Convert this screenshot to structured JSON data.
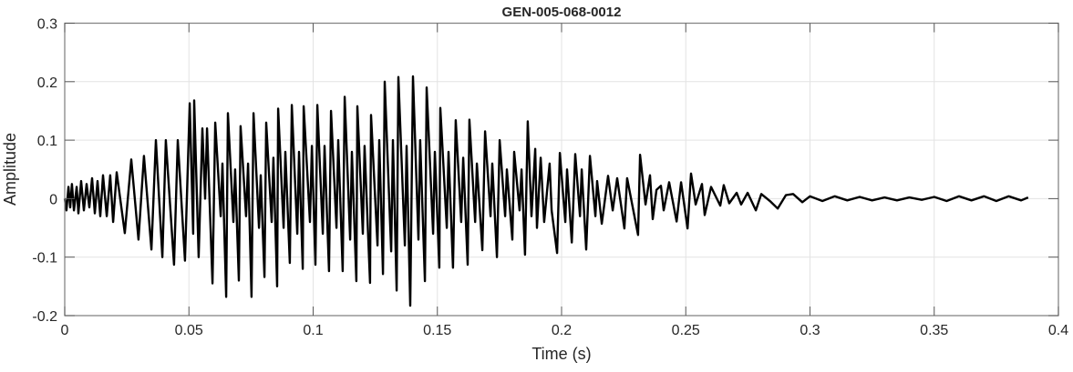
{
  "chart_data": {
    "type": "line",
    "title": "GEN-005-068-0012",
    "xlabel": "Time (s)",
    "ylabel": "Amplitude",
    "xlim": [
      0,
      0.4
    ],
    "ylim": [
      -0.2,
      0.3
    ],
    "xticks": [
      0,
      0.05,
      0.1,
      0.15,
      0.2,
      0.25,
      0.3,
      0.35,
      0.4
    ],
    "xtick_labels": [
      "0",
      "0.05",
      "0.1",
      "0.15",
      "0.2",
      "0.25",
      "0.3",
      "0.35",
      "0.4"
    ],
    "yticks": [
      -0.2,
      -0.1,
      0,
      0.1,
      0.2,
      0.3
    ],
    "ytick_labels": [
      "-0.2",
      "-0.1",
      "0",
      "0.1",
      "0.2",
      "0.3"
    ],
    "grid": true,
    "line_color": "#000000",
    "series": [
      {
        "points": [
          [
            0,
            0
          ],
          [
            0.0007,
            -0.02
          ],
          [
            0.0015,
            0.02
          ],
          [
            0.0022,
            -0.015
          ],
          [
            0.0029,
            0.025
          ],
          [
            0.0037,
            -0.02
          ],
          [
            0.0048,
            0.02
          ],
          [
            0.0055,
            -0.025
          ],
          [
            0.0066,
            0.03
          ],
          [
            0.0077,
            -0.02
          ],
          [
            0.0088,
            0.025
          ],
          [
            0.0099,
            -0.015
          ],
          [
            0.011,
            0.035
          ],
          [
            0.0121,
            -0.025
          ],
          [
            0.0132,
            0.03
          ],
          [
            0.0143,
            -0.03
          ],
          [
            0.0154,
            0.04
          ],
          [
            0.0169,
            -0.03
          ],
          [
            0.0183,
            0.04
          ],
          [
            0.0195,
            -0.04
          ],
          [
            0.0209,
            0.045
          ],
          [
            0.0242,
            -0.059
          ],
          [
            0.0268,
            0.067
          ],
          [
            0.0297,
            -0.07
          ],
          [
            0.0319,
            0.073
          ],
          [
            0.0349,
            -0.087
          ],
          [
            0.0367,
            0.1
          ],
          [
            0.0393,
            -0.1
          ],
          [
            0.0407,
            0.1
          ],
          [
            0.044,
            -0.113
          ],
          [
            0.0455,
            0.1
          ],
          [
            0.0484,
            -0.106
          ],
          [
            0.0503,
            0.163
          ],
          [
            0.0517,
            -0.06
          ],
          [
            0.0521,
            0.168
          ],
          [
            0.0539,
            -0.1
          ],
          [
            0.0554,
            0.12
          ],
          [
            0.0565,
            0
          ],
          [
            0.0573,
            0.12
          ],
          [
            0.0595,
            -0.145
          ],
          [
            0.0606,
            0.13
          ],
          [
            0.0628,
            -0.03
          ],
          [
            0.0635,
            0.06
          ],
          [
            0.065,
            -0.168
          ],
          [
            0.0657,
            0.146
          ],
          [
            0.0679,
            -0.04
          ],
          [
            0.0686,
            0.05
          ],
          [
            0.0701,
            -0.14
          ],
          [
            0.0708,
            0.124
          ],
          [
            0.073,
            -0.03
          ],
          [
            0.0738,
            0.06
          ],
          [
            0.0752,
            -0.168
          ],
          [
            0.076,
            0.146
          ],
          [
            0.0782,
            -0.05
          ],
          [
            0.0789,
            0.04
          ],
          [
            0.0804,
            -0.134
          ],
          [
            0.0811,
            0.13
          ],
          [
            0.0833,
            -0.04
          ],
          [
            0.084,
            0.07
          ],
          [
            0.0855,
            -0.15
          ],
          [
            0.0859,
            0.154
          ],
          [
            0.0881,
            -0.05
          ],
          [
            0.0888,
            0.08
          ],
          [
            0.0906,
            -0.11
          ],
          [
            0.0914,
            0.16
          ],
          [
            0.0936,
            -0.06
          ],
          [
            0.0943,
            0.08
          ],
          [
            0.0958,
            -0.12
          ],
          [
            0.0962,
            0.158
          ],
          [
            0.0987,
            -0.04
          ],
          [
            0.0995,
            0.09
          ],
          [
            0.1009,
            -0.113
          ],
          [
            0.1017,
            0.16
          ],
          [
            0.1039,
            -0.06
          ],
          [
            0.1046,
            0.09
          ],
          [
            0.1064,
            -0.124
          ],
          [
            0.1072,
            0.15
          ],
          [
            0.1094,
            -0.05
          ],
          [
            0.1101,
            0.1
          ],
          [
            0.1119,
            -0.124
          ],
          [
            0.1127,
            0.174
          ],
          [
            0.1149,
            -0.07
          ],
          [
            0.1156,
            0.08
          ],
          [
            0.1174,
            -0.141
          ],
          [
            0.1178,
            0.158
          ],
          [
            0.12,
            -0.06
          ],
          [
            0.1207,
            0.09
          ],
          [
            0.1229,
            -0.144
          ],
          [
            0.1233,
            0.143
          ],
          [
            0.1259,
            -0.08
          ],
          [
            0.1266,
            0.1
          ],
          [
            0.1281,
            -0.129
          ],
          [
            0.1288,
            0.2
          ],
          [
            0.1314,
            -0.09
          ],
          [
            0.1321,
            0.1
          ],
          [
            0.1336,
            -0.157
          ],
          [
            0.1343,
            0.208
          ],
          [
            0.1369,
            -0.08
          ],
          [
            0.1376,
            0.09
          ],
          [
            0.1391,
            -0.183
          ],
          [
            0.1402,
            0.209
          ],
          [
            0.1424,
            -0.07
          ],
          [
            0.1431,
            0.1
          ],
          [
            0.145,
            -0.141
          ],
          [
            0.1457,
            0.19
          ],
          [
            0.1483,
            -0.06
          ],
          [
            0.149,
            0.08
          ],
          [
            0.1508,
            -0.118
          ],
          [
            0.1512,
            0.155
          ],
          [
            0.1538,
            -0.05
          ],
          [
            0.1545,
            0.08
          ],
          [
            0.1563,
            -0.118
          ],
          [
            0.1574,
            0.134
          ],
          [
            0.1596,
            -0.04
          ],
          [
            0.1604,
            0.07
          ],
          [
            0.1622,
            -0.113
          ],
          [
            0.1629,
            0.135
          ],
          [
            0.1652,
            -0.04
          ],
          [
            0.1659,
            0.06
          ],
          [
            0.1681,
            -0.088
          ],
          [
            0.1692,
            0.115
          ],
          [
            0.1714,
            -0.03
          ],
          [
            0.1721,
            0.06
          ],
          [
            0.174,
            -0.1
          ],
          [
            0.1751,
            0.1
          ],
          [
            0.1773,
            -0.03
          ],
          [
            0.178,
            0.05
          ],
          [
            0.1802,
            -0.07
          ],
          [
            0.1809,
            0.08
          ],
          [
            0.1831,
            -0.02
          ],
          [
            0.1839,
            0.05
          ],
          [
            0.1853,
            -0.096
          ],
          [
            0.1864,
            0.132
          ],
          [
            0.1879,
            -0.03
          ],
          [
            0.1894,
            0.085
          ],
          [
            0.1901,
            -0.05
          ],
          [
            0.1916,
            0.07
          ],
          [
            0.193,
            -0.04
          ],
          [
            0.1952,
            0.06
          ],
          [
            0.196,
            -0.02
          ],
          [
            0.1982,
            -0.093
          ],
          [
            0.1993,
            0.078
          ],
          [
            0.2015,
            -0.04
          ],
          [
            0.2022,
            0.05
          ],
          [
            0.2041,
            -0.075
          ],
          [
            0.2055,
            0.076
          ],
          [
            0.2074,
            -0.03
          ],
          [
            0.2081,
            0.05
          ],
          [
            0.2099,
            -0.087
          ],
          [
            0.2114,
            0.073
          ],
          [
            0.2136,
            -0.03
          ],
          [
            0.2143,
            0.03
          ],
          [
            0.2162,
            -0.043
          ],
          [
            0.2187,
            0.039
          ],
          [
            0.2206,
            -0.02
          ],
          [
            0.2224,
            0.035
          ],
          [
            0.2253,
            -0.051
          ],
          [
            0.2264,
            0.035
          ],
          [
            0.2308,
            -0.062
          ],
          [
            0.2316,
            0.075
          ],
          [
            0.2338,
            -0.01
          ],
          [
            0.2356,
            0.04
          ],
          [
            0.2367,
            -0.035
          ],
          [
            0.2382,
            0.015
          ],
          [
            0.24,
            0.022
          ],
          [
            0.2411,
            -0.02
          ],
          [
            0.2433,
            0.028
          ],
          [
            0.2463,
            -0.039
          ],
          [
            0.2481,
            0.028
          ],
          [
            0.2507,
            -0.051
          ],
          [
            0.2521,
            0.043
          ],
          [
            0.254,
            -0.01
          ],
          [
            0.2565,
            0.025
          ],
          [
            0.2576,
            -0.028
          ],
          [
            0.2602,
            0.02
          ],
          [
            0.2639,
            -0.012
          ],
          [
            0.2653,
            0.023
          ],
          [
            0.2675,
            -0.008
          ],
          [
            0.2705,
            0.01
          ],
          [
            0.2723,
            -0.01
          ],
          [
            0.2749,
            0.01
          ],
          [
            0.2782,
            -0.02
          ],
          [
            0.2804,
            0.008
          ],
          [
            0.2841,
            -0.005
          ],
          [
            0.287,
            -0.017
          ],
          [
            0.2903,
            0.006
          ],
          [
            0.2932,
            0.008
          ],
          [
            0.2969,
            -0.006
          ],
          [
            0.3,
            0.004
          ],
          [
            0.305,
            -0.004
          ],
          [
            0.31,
            0.004
          ],
          [
            0.315,
            -0.003
          ],
          [
            0.32,
            0.003
          ],
          [
            0.325,
            -0.003
          ],
          [
            0.33,
            0.002
          ],
          [
            0.335,
            -0.003
          ],
          [
            0.34,
            0.002
          ],
          [
            0.345,
            -0.002
          ],
          [
            0.35,
            0.003
          ],
          [
            0.355,
            -0.004
          ],
          [
            0.36,
            0.004
          ],
          [
            0.365,
            -0.003
          ],
          [
            0.37,
            0.004
          ],
          [
            0.375,
            -0.004
          ],
          [
            0.38,
            0.004
          ],
          [
            0.385,
            -0.003
          ],
          [
            0.3878,
            0.002
          ]
        ]
      }
    ]
  }
}
